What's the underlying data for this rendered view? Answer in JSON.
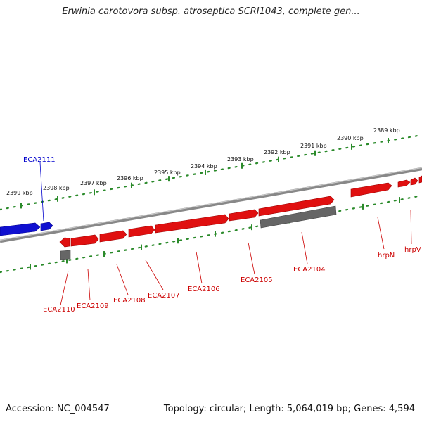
{
  "title": "Erwinia carotovora subsp. atroseptica SCRI1043, complete gen...",
  "footer": {
    "accession": "Accession: NC_004547",
    "stats": "Topology: circular; Length: 5,064,019 bp; Genes: 4,594"
  },
  "colors": {
    "forward_gene": "#e01010",
    "reverse_gene": "#1010d0",
    "other_feature": "#666666",
    "backbone": "#888888",
    "tick": "#2a8a2a",
    "forward_label": "#cc0000",
    "reverse_label": "#0000cc"
  },
  "kbp_ticks": [
    "2399 kbp",
    "2398 kbp",
    "2397 kbp",
    "2396 kbp",
    "2395 kbp",
    "2394 kbp",
    "2393 kbp",
    "2392 kbp",
    "2391 kbp",
    "2390 kbp",
    "2389 kbp"
  ],
  "gene_labels": {
    "ECA2111": "ECA2111",
    "ECA2110": "ECA2110",
    "ECA2109": "ECA2109",
    "ECA2108": "ECA2108",
    "ECA2107": "ECA2107",
    "ECA2106": "ECA2106",
    "ECA2105": "ECA2105",
    "ECA2104": "ECA2104",
    "hrpN": "hrpN",
    "hrpV": "hrpV"
  }
}
